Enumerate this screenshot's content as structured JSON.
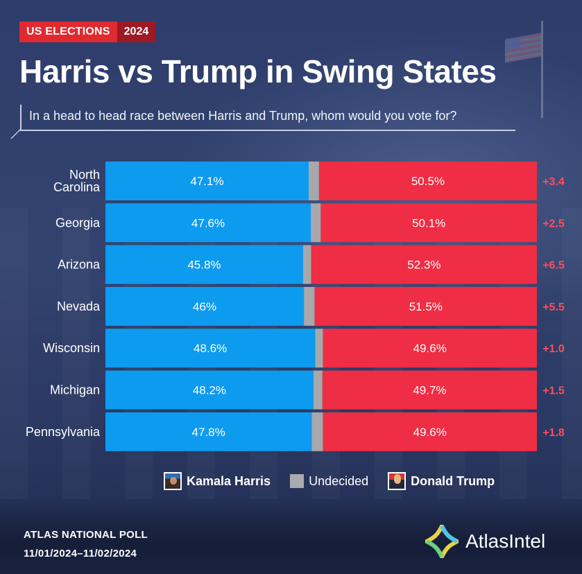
{
  "badge": {
    "left": "US ELECTIONS",
    "right": "2024"
  },
  "title": "Harris vs Trump in Swing States",
  "subtitle": "In a head to head race between Harris and Trump, whom would you vote for?",
  "colors": {
    "harris": "#0d9bf0",
    "trump": "#ef2d44",
    "undecided": "#a6a8ac",
    "margin": "#ff4d5e"
  },
  "legend": {
    "harris": "Kamala Harris",
    "undecided": "Undecided",
    "trump": "Donald Trump"
  },
  "source": {
    "line1": "ATLAS NATIONAL POLL",
    "line2": "11/01/2024–11/02/2024"
  },
  "logo": {
    "text": "AtlasIntel"
  },
  "chart_data": {
    "type": "bar",
    "orientation": "horizontal",
    "stacked": true,
    "categories": [
      "North Carolina",
      "Georgia",
      "Arizona",
      "Nevada",
      "Wisconsin",
      "Michigan",
      "Pennsylvania"
    ],
    "series": [
      {
        "name": "Kamala Harris",
        "values": [
          47.1,
          47.6,
          45.8,
          46,
          48.6,
          48.2,
          47.8
        ],
        "labels": [
          "47.1%",
          "47.6%",
          "45.8%",
          "46%",
          "48.6%",
          "48.2%",
          "47.8%"
        ]
      },
      {
        "name": "Undecided",
        "values": [
          2.4,
          2.3,
          1.9,
          2.5,
          1.8,
          2.1,
          2.6
        ]
      },
      {
        "name": "Donald Trump",
        "values": [
          50.5,
          50.1,
          52.3,
          51.5,
          49.6,
          49.7,
          49.6
        ],
        "labels": [
          "50.5%",
          "50.1%",
          "52.3%",
          "51.5%",
          "49.6%",
          "49.7%",
          "49.6%"
        ]
      }
    ],
    "margins": [
      "+3.4",
      "+2.5",
      "+6.5",
      "+5.5",
      "+1.0",
      "+1.5",
      "+1.8"
    ],
    "xlim": [
      0,
      100
    ],
    "grid": false,
    "legend_position": "bottom"
  }
}
